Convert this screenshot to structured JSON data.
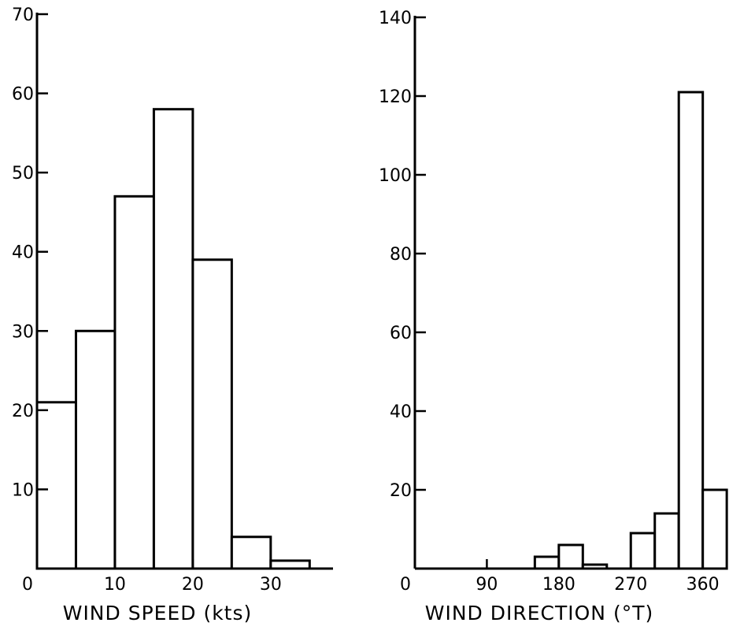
{
  "chart_data": [
    {
      "type": "bar",
      "title": "",
      "xlabel": "WIND SPEED (kts)",
      "ylabel": "",
      "xlim": [
        0,
        38
      ],
      "ylim": [
        0,
        70
      ],
      "bin_width": 5,
      "bins": [
        {
          "x0": 0,
          "x1": 5,
          "value": 21
        },
        {
          "x0": 5,
          "x1": 10,
          "value": 30
        },
        {
          "x0": 10,
          "x1": 15,
          "value": 47
        },
        {
          "x0": 15,
          "x1": 20,
          "value": 58
        },
        {
          "x0": 20,
          "x1": 25,
          "value": 39
        },
        {
          "x0": 25,
          "x1": 30,
          "value": 4
        },
        {
          "x0": 30,
          "x1": 35,
          "value": 1
        }
      ],
      "xticks": [
        0,
        10,
        20,
        30
      ],
      "xtick_labels": [
        "0",
        "10",
        "20",
        "30"
      ],
      "yticks": [
        10,
        20,
        30,
        40,
        50,
        60,
        70
      ],
      "ytick_labels": [
        "10",
        "20",
        "30",
        "40",
        "50",
        "60",
        "70"
      ],
      "grid": false,
      "legend": "none"
    },
    {
      "type": "bar",
      "title": "",
      "xlabel": "WIND DIRECTION (°T)",
      "ylabel": "",
      "xlim": [
        0,
        380
      ],
      "ylim": [
        0,
        140
      ],
      "bin_width": 30,
      "bins": [
        {
          "x0": 150,
          "x1": 180,
          "value": 3
        },
        {
          "x0": 180,
          "x1": 210,
          "value": 6
        },
        {
          "x0": 210,
          "x1": 240,
          "value": 1
        },
        {
          "x0": 270,
          "x1": 300,
          "value": 9
        },
        {
          "x0": 300,
          "x1": 330,
          "value": 14
        },
        {
          "x0": 330,
          "x1": 360,
          "value": 121
        },
        {
          "x0": 360,
          "x1": 390,
          "value": 20
        }
      ],
      "xticks": [
        0,
        90,
        180,
        270,
        360
      ],
      "xtick_labels": [
        "0",
        "90",
        "180",
        "270",
        "360"
      ],
      "yticks": [
        20,
        40,
        60,
        80,
        100,
        120,
        140
      ],
      "ytick_labels": [
        "20",
        "40",
        "60",
        "80",
        "100",
        "120",
        "140"
      ],
      "grid": false,
      "legend": "none"
    }
  ]
}
